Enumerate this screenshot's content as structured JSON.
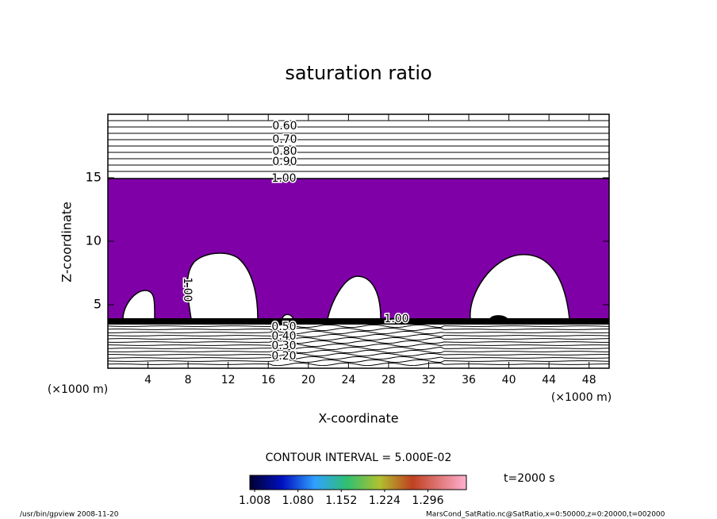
{
  "chart_data": {
    "type": "contour",
    "title": "saturation ratio",
    "x_label": "X-coordinate",
    "y_label": "Z-coordinate",
    "x_unit_label": "(×1000 m)",
    "y_unit_label": "(×1000 m)",
    "xlim": [
      0,
      50
    ],
    "ylim": [
      0,
      20
    ],
    "xticks": [
      4,
      8,
      12,
      16,
      20,
      24,
      28,
      32,
      36,
      40,
      44,
      48
    ],
    "yticks": [
      5,
      10,
      15
    ],
    "fill_color": "#8000a8",
    "contour_labels": [
      "0.60",
      "0.70",
      "0.80",
      "0.90",
      "1.00",
      "1.00",
      "1.00",
      "0.50",
      "0.40",
      "0.30",
      "0.20"
    ],
    "contour_interval_label": "CONTOUR INTERVAL = 5.000E-02",
    "colorbar": {
      "clim": [
        1.0,
        1.36
      ],
      "ticks": [
        1.008,
        {
          "value": 1.08,
          "label": "1.080"
        },
        1.152,
        1.224,
        1.296
      ]
    },
    "time_label": "t=2000 s",
    "footer_left": "/usr/bin/gpview   2008-11-20",
    "footer_right": "MarsCond_SatRatio.nc@SatRatio,x=0:50000,z=0:20000,t=002000"
  }
}
